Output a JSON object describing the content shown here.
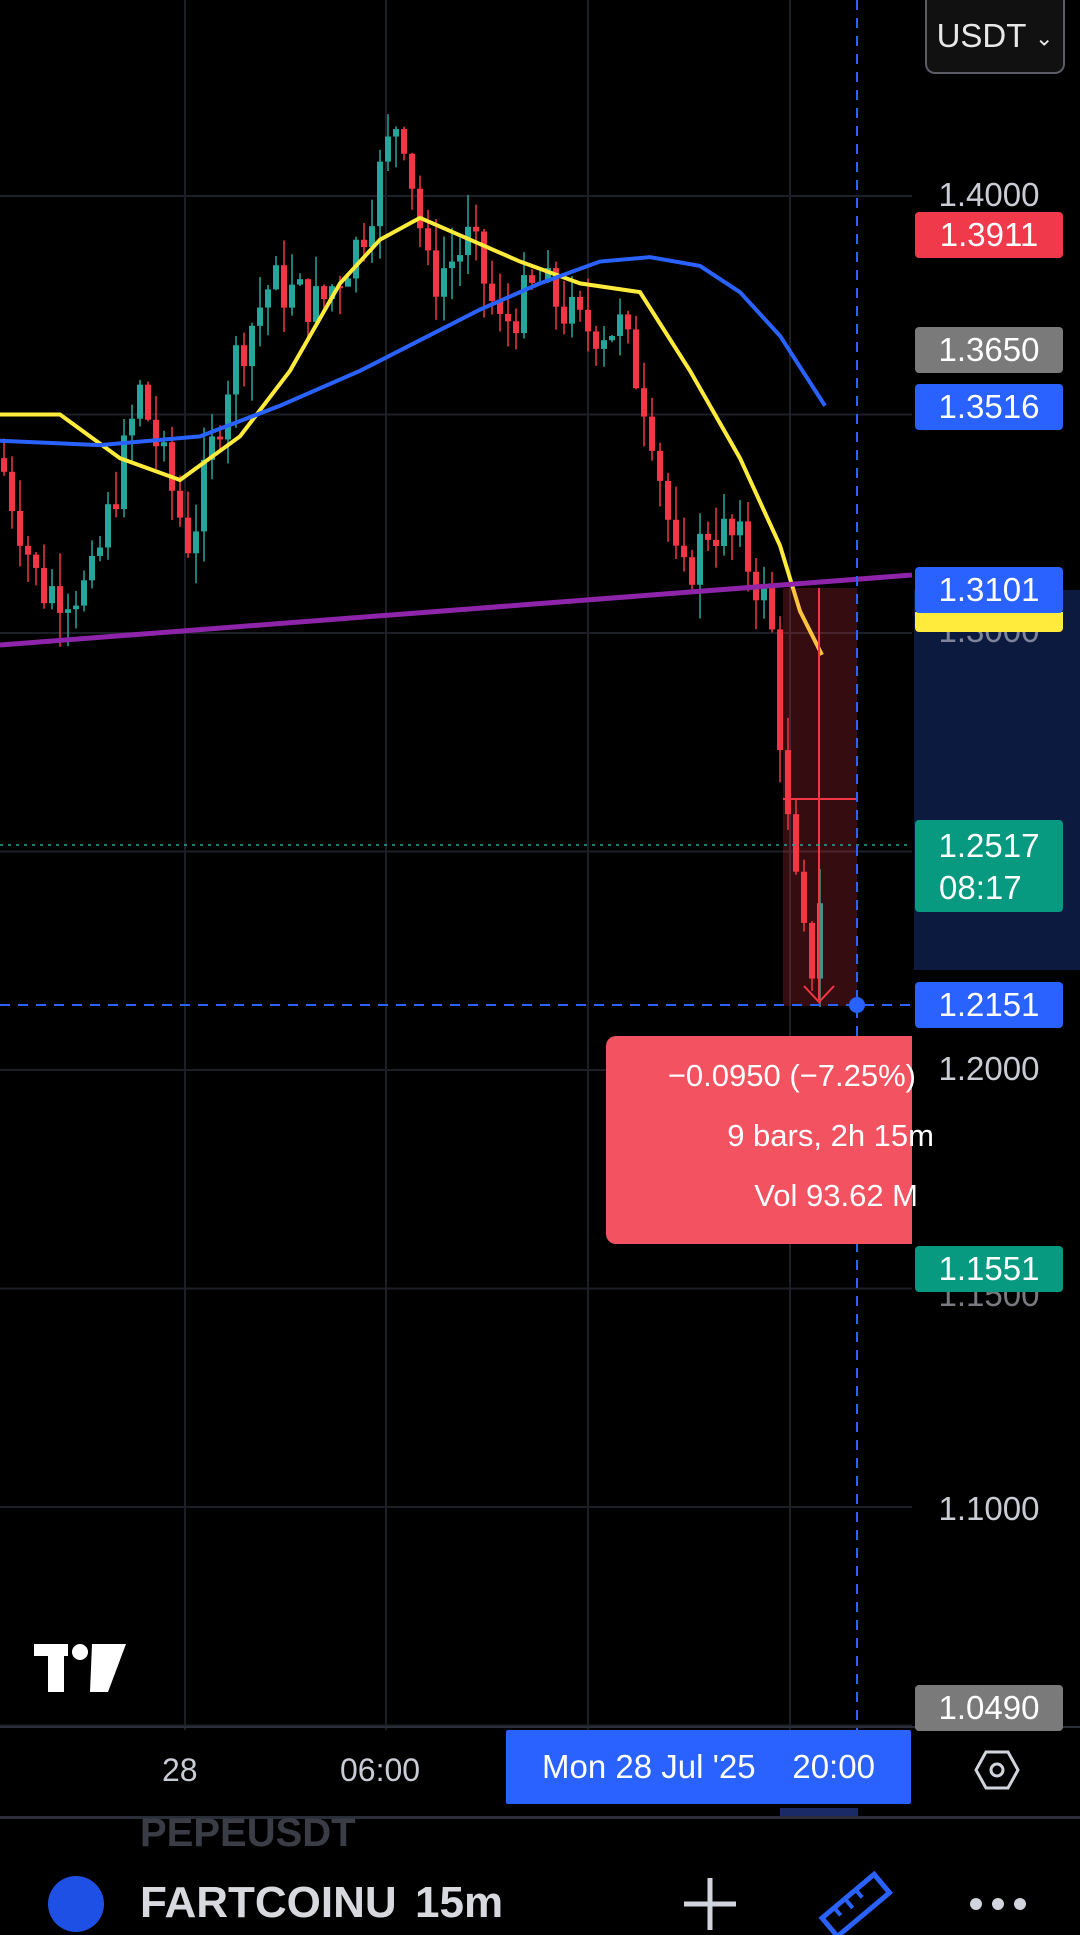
{
  "currency_selector": {
    "label": "USDT",
    "icon": "chevron-down-icon"
  },
  "price_axis": {
    "ticks": [
      "1.4000",
      "1.2000",
      "1.1000"
    ],
    "hidden_ticks": [
      "1.3000",
      "1.1500"
    ]
  },
  "price_tags": {
    "high": {
      "value": "1.3911",
      "color": "#f0394a"
    },
    "level_gray_top": {
      "value": "1.3650",
      "color": "#7a7a7a"
    },
    "ma_blue": {
      "value": "1.3516",
      "color": "#2962ff"
    },
    "trendline": {
      "value": "1.3101",
      "color": "#2962ff"
    },
    "ma_yellow_color": "#ffeb3b",
    "current": {
      "value": "1.2517",
      "countdown": "08:17",
      "color": "#089981"
    },
    "crosshair": {
      "value": "1.2151",
      "color": "#2962ff"
    },
    "low": {
      "value": "1.1551",
      "color": "#089981"
    },
    "level_gray_bottom": {
      "value": "1.0490",
      "color": "#7a7a7a"
    }
  },
  "measure_tool": {
    "change": "−0.0950 (−7.25%)",
    "bars_time": "9 bars, 2h 15m",
    "volume": "Vol 93.62 M"
  },
  "time_axis": {
    "labels": [
      "28",
      "06:00"
    ],
    "crosshair_date": "Mon 28 Jul '25",
    "crosshair_time": "20:00"
  },
  "logo": "tradingview-logo",
  "bottom_bar": {
    "partial_symbol": "PEPEUSDT",
    "symbol": "FARTCOINU",
    "interval": "15m"
  },
  "colors": {
    "up": "#26a69a",
    "down": "#f23645",
    "ma_fast": "#ffeb3b",
    "ma_slow": "#2962ff",
    "trendline": "#8e24aa",
    "crosshair": "#2962ff"
  }
}
